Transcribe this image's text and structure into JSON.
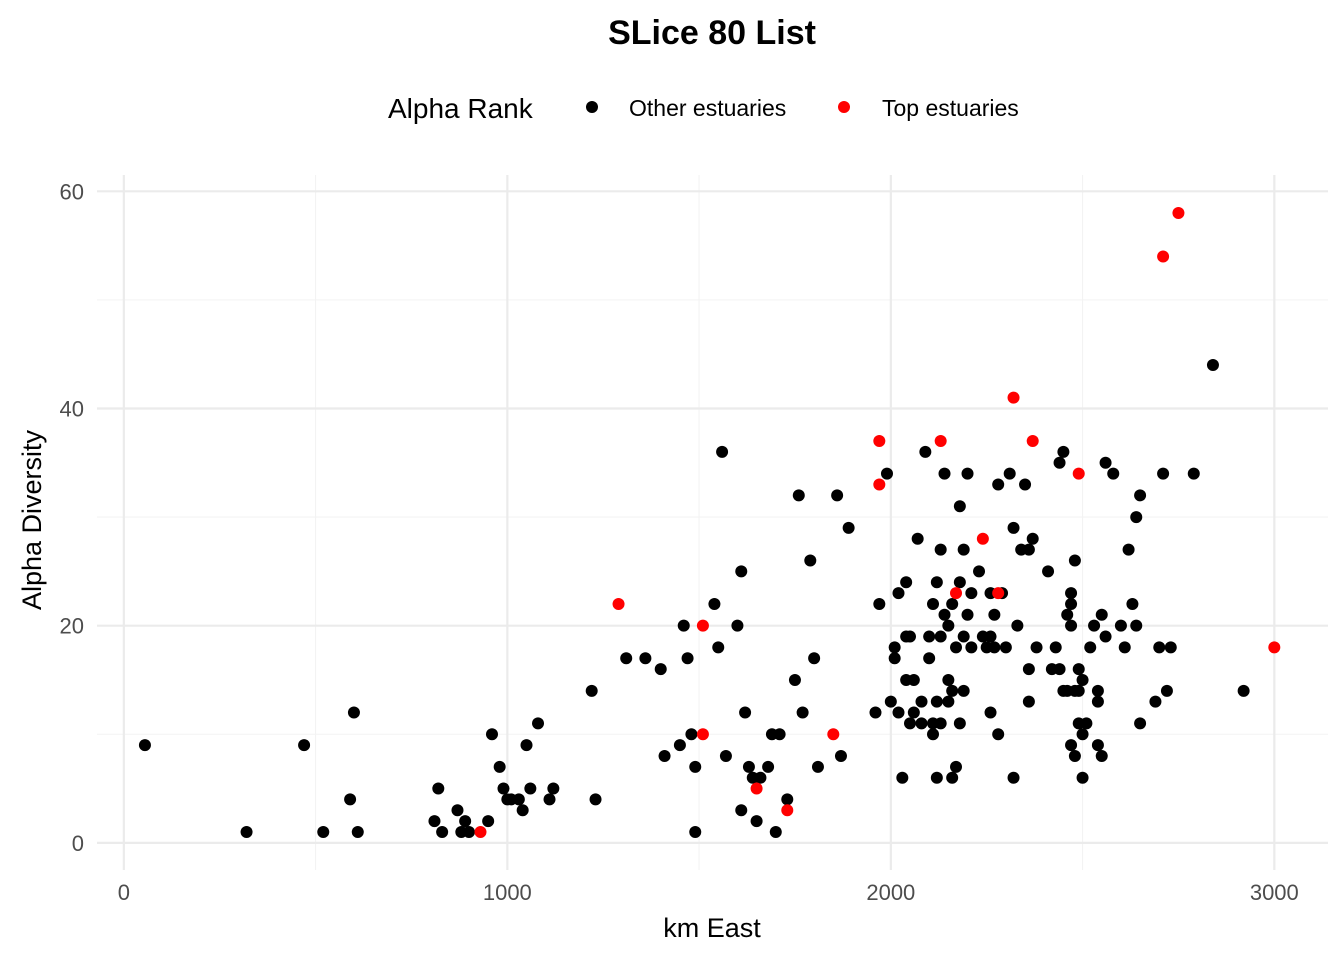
{
  "chart_data": {
    "type": "scatter",
    "title": "SLice 80 List",
    "xlabel": "km East",
    "ylabel": "Alpha Diversity",
    "xlim": [
      -70,
      3140
    ],
    "ylim": [
      -2.5,
      61.5
    ],
    "xticks": [
      0,
      1000,
      2000,
      3000
    ],
    "yticks": [
      0,
      20,
      40,
      60
    ],
    "grid": true,
    "legend": {
      "title": "Alpha Rank",
      "position": "top",
      "entries": [
        {
          "label": "Other estuaries",
          "color": "#000000"
        },
        {
          "label": "Top estuaries",
          "color": "#ff0000"
        }
      ]
    },
    "series": [
      {
        "name": "Other estuaries",
        "color": "#000000",
        "points": [
          [
            55,
            9
          ],
          [
            320,
            1
          ],
          [
            470,
            9
          ],
          [
            520,
            1
          ],
          [
            590,
            4
          ],
          [
            600,
            12
          ],
          [
            610,
            1
          ],
          [
            810,
            2
          ],
          [
            820,
            5
          ],
          [
            830,
            1
          ],
          [
            870,
            3
          ],
          [
            880,
            1
          ],
          [
            890,
            2
          ],
          [
            900,
            1
          ],
          [
            950,
            2
          ],
          [
            960,
            10
          ],
          [
            980,
            7
          ],
          [
            990,
            5
          ],
          [
            1000,
            4
          ],
          [
            1010,
            4
          ],
          [
            1030,
            4
          ],
          [
            1040,
            3
          ],
          [
            1050,
            9
          ],
          [
            1060,
            5
          ],
          [
            1080,
            11
          ],
          [
            1110,
            4
          ],
          [
            1120,
            5
          ],
          [
            1220,
            14
          ],
          [
            1230,
            4
          ],
          [
            1310,
            17
          ],
          [
            1360,
            17
          ],
          [
            1400,
            16
          ],
          [
            1410,
            8
          ],
          [
            1450,
            9
          ],
          [
            1460,
            20
          ],
          [
            1470,
            17
          ],
          [
            1480,
            10
          ],
          [
            1490,
            7
          ],
          [
            1490,
            1
          ],
          [
            1540,
            22
          ],
          [
            1550,
            18
          ],
          [
            1560,
            36
          ],
          [
            1570,
            8
          ],
          [
            1600,
            20
          ],
          [
            1610,
            25
          ],
          [
            1610,
            3
          ],
          [
            1620,
            12
          ],
          [
            1630,
            7
          ],
          [
            1640,
            6
          ],
          [
            1650,
            2
          ],
          [
            1660,
            6
          ],
          [
            1680,
            7
          ],
          [
            1690,
            10
          ],
          [
            1700,
            1
          ],
          [
            1710,
            10
          ],
          [
            1730,
            4
          ],
          [
            1750,
            15
          ],
          [
            1760,
            32
          ],
          [
            1770,
            12
          ],
          [
            1790,
            26
          ],
          [
            1800,
            17
          ],
          [
            1810,
            7
          ],
          [
            1860,
            32
          ],
          [
            1870,
            8
          ],
          [
            1890,
            29
          ],
          [
            1960,
            12
          ],
          [
            1970,
            22
          ],
          [
            1990,
            34
          ],
          [
            2000,
            13
          ],
          [
            2010,
            17
          ],
          [
            2010,
            18
          ],
          [
            2020,
            23
          ],
          [
            2020,
            12
          ],
          [
            2030,
            6
          ],
          [
            2040,
            19
          ],
          [
            2040,
            15
          ],
          [
            2040,
            24
          ],
          [
            2050,
            19
          ],
          [
            2050,
            11
          ],
          [
            2060,
            15
          ],
          [
            2060,
            12
          ],
          [
            2070,
            28
          ],
          [
            2080,
            13
          ],
          [
            2080,
            11
          ],
          [
            2090,
            36
          ],
          [
            2100,
            19
          ],
          [
            2100,
            17
          ],
          [
            2110,
            22
          ],
          [
            2110,
            11
          ],
          [
            2110,
            10
          ],
          [
            2120,
            24
          ],
          [
            2120,
            13
          ],
          [
            2120,
            6
          ],
          [
            2130,
            27
          ],
          [
            2130,
            11
          ],
          [
            2130,
            19
          ],
          [
            2140,
            34
          ],
          [
            2140,
            21
          ],
          [
            2150,
            20
          ],
          [
            2150,
            15
          ],
          [
            2150,
            13
          ],
          [
            2160,
            22
          ],
          [
            2160,
            14
          ],
          [
            2160,
            6
          ],
          [
            2170,
            7
          ],
          [
            2170,
            18
          ],
          [
            2180,
            24
          ],
          [
            2180,
            11
          ],
          [
            2180,
            31
          ],
          [
            2190,
            27
          ],
          [
            2190,
            19
          ],
          [
            2190,
            14
          ],
          [
            2200,
            34
          ],
          [
            2200,
            21
          ],
          [
            2210,
            23
          ],
          [
            2210,
            18
          ],
          [
            2230,
            25
          ],
          [
            2240,
            19
          ],
          [
            2250,
            18
          ],
          [
            2260,
            23
          ],
          [
            2260,
            12
          ],
          [
            2260,
            19
          ],
          [
            2270,
            21
          ],
          [
            2270,
            18
          ],
          [
            2280,
            10
          ],
          [
            2280,
            33
          ],
          [
            2290,
            23
          ],
          [
            2300,
            18
          ],
          [
            2310,
            34
          ],
          [
            2320,
            6
          ],
          [
            2320,
            29
          ],
          [
            2330,
            20
          ],
          [
            2340,
            27
          ],
          [
            2350,
            33
          ],
          [
            2360,
            27
          ],
          [
            2360,
            13
          ],
          [
            2360,
            16
          ],
          [
            2370,
            28
          ],
          [
            2380,
            18
          ],
          [
            2410,
            25
          ],
          [
            2420,
            16
          ],
          [
            2430,
            18
          ],
          [
            2440,
            16
          ],
          [
            2440,
            35
          ],
          [
            2450,
            14
          ],
          [
            2450,
            36
          ],
          [
            2460,
            21
          ],
          [
            2460,
            14
          ],
          [
            2470,
            9
          ],
          [
            2470,
            22
          ],
          [
            2470,
            23
          ],
          [
            2470,
            20
          ],
          [
            2480,
            8
          ],
          [
            2480,
            26
          ],
          [
            2480,
            14
          ],
          [
            2490,
            11
          ],
          [
            2490,
            14
          ],
          [
            2490,
            16
          ],
          [
            2500,
            15
          ],
          [
            2500,
            10
          ],
          [
            2500,
            6
          ],
          [
            2510,
            11
          ],
          [
            2520,
            18
          ],
          [
            2530,
            20
          ],
          [
            2540,
            14
          ],
          [
            2540,
            13
          ],
          [
            2540,
            9
          ],
          [
            2550,
            21
          ],
          [
            2550,
            8
          ],
          [
            2560,
            35
          ],
          [
            2560,
            19
          ],
          [
            2580,
            34
          ],
          [
            2600,
            20
          ],
          [
            2610,
            18
          ],
          [
            2620,
            27
          ],
          [
            2630,
            22
          ],
          [
            2640,
            30
          ],
          [
            2640,
            20
          ],
          [
            2650,
            11
          ],
          [
            2650,
            32
          ],
          [
            2690,
            13
          ],
          [
            2700,
            18
          ],
          [
            2710,
            34
          ],
          [
            2720,
            14
          ],
          [
            2730,
            18
          ],
          [
            2790,
            34
          ],
          [
            2840,
            44
          ],
          [
            2920,
            14
          ]
        ]
      },
      {
        "name": "Top estuaries",
        "color": "#ff0000",
        "points": [
          [
            930,
            1
          ],
          [
            1290,
            22
          ],
          [
            1510,
            20
          ],
          [
            1510,
            10
          ],
          [
            1650,
            5
          ],
          [
            1730,
            3
          ],
          [
            1850,
            10
          ],
          [
            1970,
            37
          ],
          [
            1970,
            33
          ],
          [
            2130,
            37
          ],
          [
            2170,
            23
          ],
          [
            2240,
            28
          ],
          [
            2280,
            23
          ],
          [
            2320,
            41
          ],
          [
            2370,
            37
          ],
          [
            2490,
            34
          ],
          [
            2710,
            54
          ],
          [
            2750,
            58
          ],
          [
            3000,
            18
          ]
        ]
      }
    ]
  }
}
